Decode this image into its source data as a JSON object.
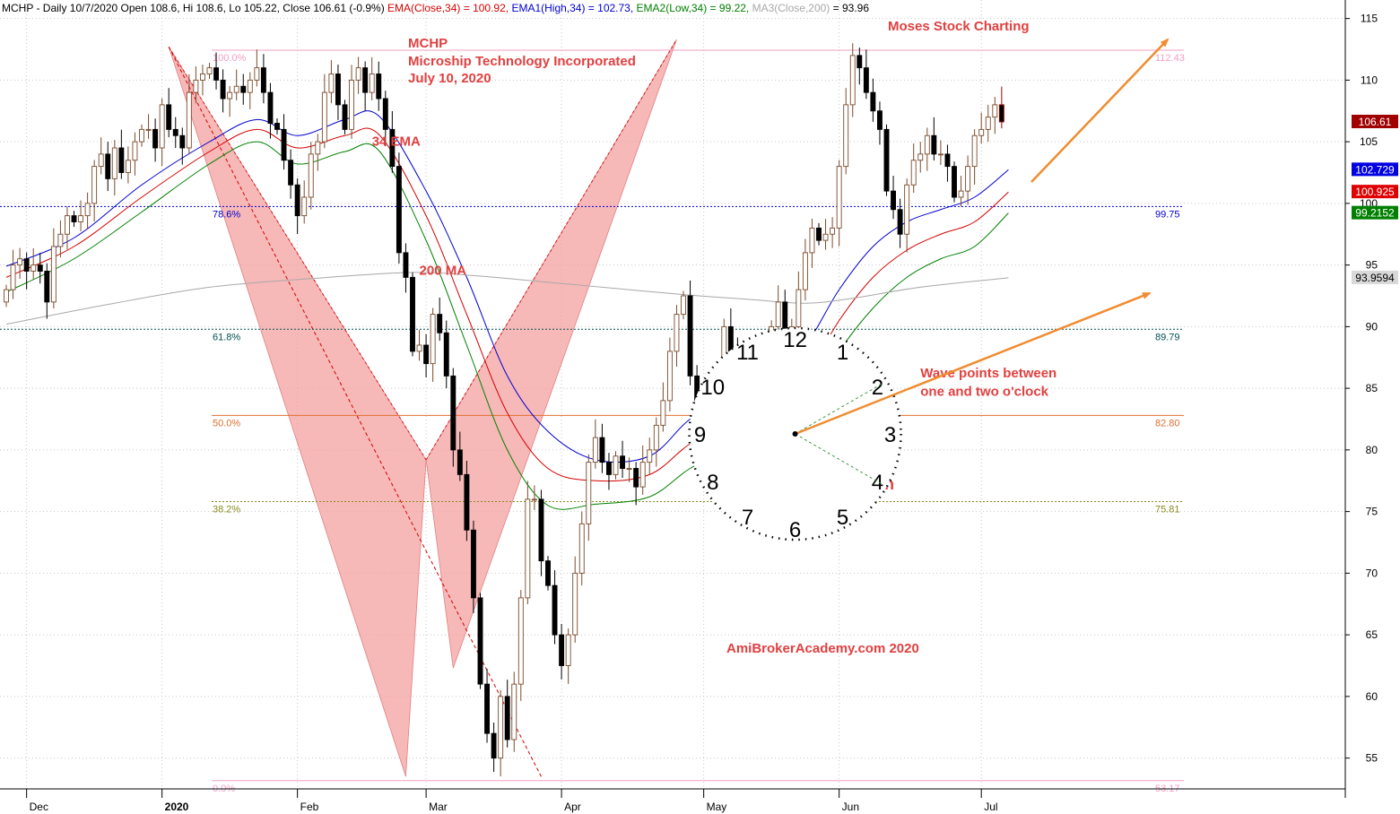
{
  "header": {
    "symbol_line": "MCHP - Daily 10/7/2020 Open 108.6, Hi 108.6, Lo 105.22, Close 106.61 (-0.9%) ",
    "ema": {
      "text": "EMA(Close,34) = 100.92,",
      "color": "#d40000"
    },
    "ema1": {
      "text": " EMA1(High,34) = 102.73,",
      "color": "#0000d0"
    },
    "ema2": {
      "text": " EMA2(Low,34) = 99.22,",
      "color": "#008000"
    },
    "ma3_label": {
      "text": " MA3(Close,200)",
      "color": "#a8a8a8"
    },
    "ma3_value": " = 93.96"
  },
  "chart_data": {
    "type": "candlestick",
    "title": "MCHP",
    "subtitle": "Microship Technology Incorporated",
    "date_note": "July 10, 2020",
    "watermark_top": "Moses Stock Charting",
    "watermark_bottom": "AmiBrokerAcademy.com  2020",
    "ylim": [
      52.5,
      116.5
    ],
    "y_ticks": [
      55,
      60,
      65,
      70,
      75,
      80,
      85,
      90,
      95,
      100,
      105,
      110,
      115
    ],
    "x_ticks": [
      {
        "label": "Dec",
        "idx": 3
      },
      {
        "label": "2020",
        "idx": 23
      },
      {
        "label": "Feb",
        "idx": 43
      },
      {
        "label": "Mar",
        "idx": 62
      },
      {
        "label": "Apr",
        "idx": 82
      },
      {
        "label": "May",
        "idx": 103
      },
      {
        "label": "Jun",
        "idx": 123
      },
      {
        "label": "Jul",
        "idx": 144
      }
    ],
    "candles": {
      "start_idx": 0,
      "closes": [
        93,
        95,
        95.5,
        94.5,
        95,
        94.5,
        92,
        96.5,
        97.5,
        99,
        98.5,
        99,
        100,
        103,
        104,
        102,
        104.5,
        102.5,
        103.5,
        105,
        106,
        106,
        104.5,
        108,
        106,
        105.5,
        104.5,
        109,
        110,
        110.5,
        111,
        110,
        108.5,
        109,
        109.5,
        109,
        110,
        111,
        109,
        106.5,
        106,
        103.5,
        101.5,
        99,
        100.5,
        104,
        105,
        109,
        110.5,
        108,
        106,
        110,
        111,
        109,
        110.5,
        108.5,
        106,
        103,
        96,
        94,
        88,
        88.5,
        87,
        91,
        89.5,
        86,
        80,
        78,
        73.5,
        68,
        61,
        57,
        55,
        60,
        56.5,
        61,
        68,
        76,
        76,
        71,
        69,
        65,
        62.5,
        65,
        70,
        74,
        79,
        81,
        79,
        78,
        79.5,
        78.5,
        78.5,
        77,
        79,
        80,
        82,
        84,
        88,
        91,
        92.5,
        86,
        83.5,
        82,
        85,
        84,
        90,
        88,
        85,
        86.5,
        83,
        83,
        86.5,
        90,
        92,
        89,
        90,
        93,
        96,
        98,
        97,
        97.5,
        98,
        103,
        108,
        112,
        111,
        109,
        107.5,
        106,
        101,
        99.5,
        97.5,
        101.5,
        103.5,
        104,
        105.5,
        104,
        104,
        103,
        100.5,
        101,
        103,
        105.5,
        106,
        107,
        108,
        106.61
      ],
      "last_color": "#a00000"
    },
    "series": [
      {
        "name": "EMA1(High,34)",
        "color": "#0000d0",
        "values": [
          [
            0,
            94.9
          ],
          [
            10,
            97.2
          ],
          [
            20,
            101.5
          ],
          [
            30,
            105
          ],
          [
            37,
            106.8
          ],
          [
            43,
            105.5
          ],
          [
            50,
            106.8
          ],
          [
            55,
            107.1
          ],
          [
            62,
            101
          ],
          [
            68,
            94
          ],
          [
            74,
            86
          ],
          [
            80,
            81.5
          ],
          [
            87,
            79.2
          ],
          [
            95,
            79.5
          ],
          [
            101,
            82.5
          ],
          [
            107,
            84
          ],
          [
            113,
            86.5
          ],
          [
            118,
            88.5
          ],
          [
            123,
            93
          ],
          [
            128,
            96.5
          ],
          [
            133,
            98.5
          ],
          [
            138,
            99.5
          ],
          [
            143,
            100.5
          ],
          [
            148,
            102.73
          ]
        ]
      },
      {
        "name": "EMA(Close,34)",
        "color": "#d40000",
        "values": [
          [
            0,
            94
          ],
          [
            10,
            96.5
          ],
          [
            20,
            100.5
          ],
          [
            30,
            104.2
          ],
          [
            37,
            106
          ],
          [
            43,
            104.5
          ],
          [
            50,
            105.5
          ],
          [
            55,
            105.6
          ],
          [
            62,
            99
          ],
          [
            68,
            91
          ],
          [
            74,
            83
          ],
          [
            80,
            78.5
          ],
          [
            87,
            77.5
          ],
          [
            95,
            78
          ],
          [
            101,
            80.5
          ],
          [
            107,
            82
          ],
          [
            113,
            84.2
          ],
          [
            118,
            86
          ],
          [
            123,
            90.5
          ],
          [
            128,
            94
          ],
          [
            133,
            96.2
          ],
          [
            138,
            97.5
          ],
          [
            143,
            98.5
          ],
          [
            148,
            100.92
          ]
        ]
      },
      {
        "name": "EMA2(Low,34)",
        "color": "#008000",
        "values": [
          [
            0,
            92.8
          ],
          [
            10,
            95.5
          ],
          [
            20,
            99.3
          ],
          [
            30,
            103.2
          ],
          [
            37,
            105
          ],
          [
            43,
            103.2
          ],
          [
            50,
            104.2
          ],
          [
            55,
            104.3
          ],
          [
            62,
            97
          ],
          [
            68,
            88.5
          ],
          [
            74,
            80
          ],
          [
            80,
            75.5
          ],
          [
            87,
            75.6
          ],
          [
            95,
            76.2
          ],
          [
            101,
            78.5
          ],
          [
            107,
            80
          ],
          [
            113,
            82
          ],
          [
            118,
            83.5
          ],
          [
            123,
            88
          ],
          [
            128,
            91.5
          ],
          [
            133,
            94
          ],
          [
            138,
            95.5
          ],
          [
            143,
            96.5
          ],
          [
            148,
            99.22
          ]
        ]
      },
      {
        "name": "MA3(Close,200)",
        "color": "#a8a8a8",
        "values": [
          [
            0,
            90.2
          ],
          [
            15,
            91.8
          ],
          [
            30,
            93.2
          ],
          [
            45,
            93.9
          ],
          [
            60,
            94.4
          ],
          [
            70,
            94.1
          ],
          [
            80,
            93.6
          ],
          [
            90,
            93.1
          ],
          [
            100,
            92.6
          ],
          [
            110,
            92.2
          ],
          [
            118,
            91.9
          ],
          [
            125,
            92.3
          ],
          [
            135,
            93.2
          ],
          [
            148,
            93.96
          ]
        ]
      }
    ],
    "fib_levels": [
      {
        "label": "100.0%",
        "value": 112.43,
        "value_label": "112.43",
        "color": "#f0a0c0",
        "style": "solid"
      },
      {
        "label": "78.6%",
        "value": 99.75,
        "value_label": "99.75",
        "color": "#0000d0",
        "style": "dotted"
      },
      {
        "label": "61.8%",
        "value": 89.79,
        "value_label": "89.79",
        "color": "#005050",
        "style": "dotted"
      },
      {
        "label": "50.0%",
        "value": 82.8,
        "value_label": "82.80",
        "color": "#e07030",
        "style": "solid"
      },
      {
        "label": "38.2%",
        "value": 75.81,
        "value_label": "75.81",
        "color": "#8a8a20",
        "style": "dotted"
      },
      {
        "label": "0.0%",
        "value": 53.17,
        "value_label": "53.17",
        "color": "#f0a0c0",
        "style": "solid"
      }
    ],
    "pattern_points": [
      {
        "idx": 24,
        "value": 112.7
      },
      {
        "idx": 59,
        "value": 53.5
      },
      {
        "idx": 62,
        "value": 79.2
      },
      {
        "idx": 66,
        "value": 62.3
      },
      {
        "idx": 99,
        "value": 113.3
      }
    ],
    "trend_line": {
      "from": {
        "idx": 24,
        "value": 112.7
      },
      "to": {
        "idx": 79,
        "value": 53.5
      },
      "color": "#d40000"
    },
    "last_values": [
      {
        "label": "106.61",
        "value": 106.61,
        "bg": "#a00000",
        "fg": "#ffffff"
      },
      {
        "label": "102.729",
        "value": 102.729,
        "bg": "#0000e0",
        "fg": "#ffffff"
      },
      {
        "label": "100.925",
        "value": 100.925,
        "bg": "#e00000",
        "fg": "#ffffff"
      },
      {
        "label": "99.2152",
        "value": 99.2152,
        "bg": "#008000",
        "fg": "#ffffff"
      },
      {
        "label": "93.9594",
        "value": 93.9594,
        "bg": "#d8d8d8",
        "fg": "#000000"
      }
    ],
    "annotations": [
      {
        "text": "34 EMA",
        "idx": 54,
        "value": 104.7
      },
      {
        "text": "200 MA",
        "idx": 61,
        "value": 94.2
      },
      {
        "text": "Wave points between",
        "idx": 135,
        "value": 85.9
      },
      {
        "text": "one and two o'clock",
        "idx": 135,
        "value": 84.4
      },
      {
        "text": "Wave Direction",
        "idx": 114,
        "value": 76.8
      }
    ],
    "clock": {
      "numbers": [
        "12",
        "1",
        "2",
        "3",
        "4",
        "5",
        "6",
        "7",
        "8",
        "9",
        "10",
        "11"
      ],
      "center": {
        "idx": 116.5,
        "value": 81.3
      }
    }
  }
}
